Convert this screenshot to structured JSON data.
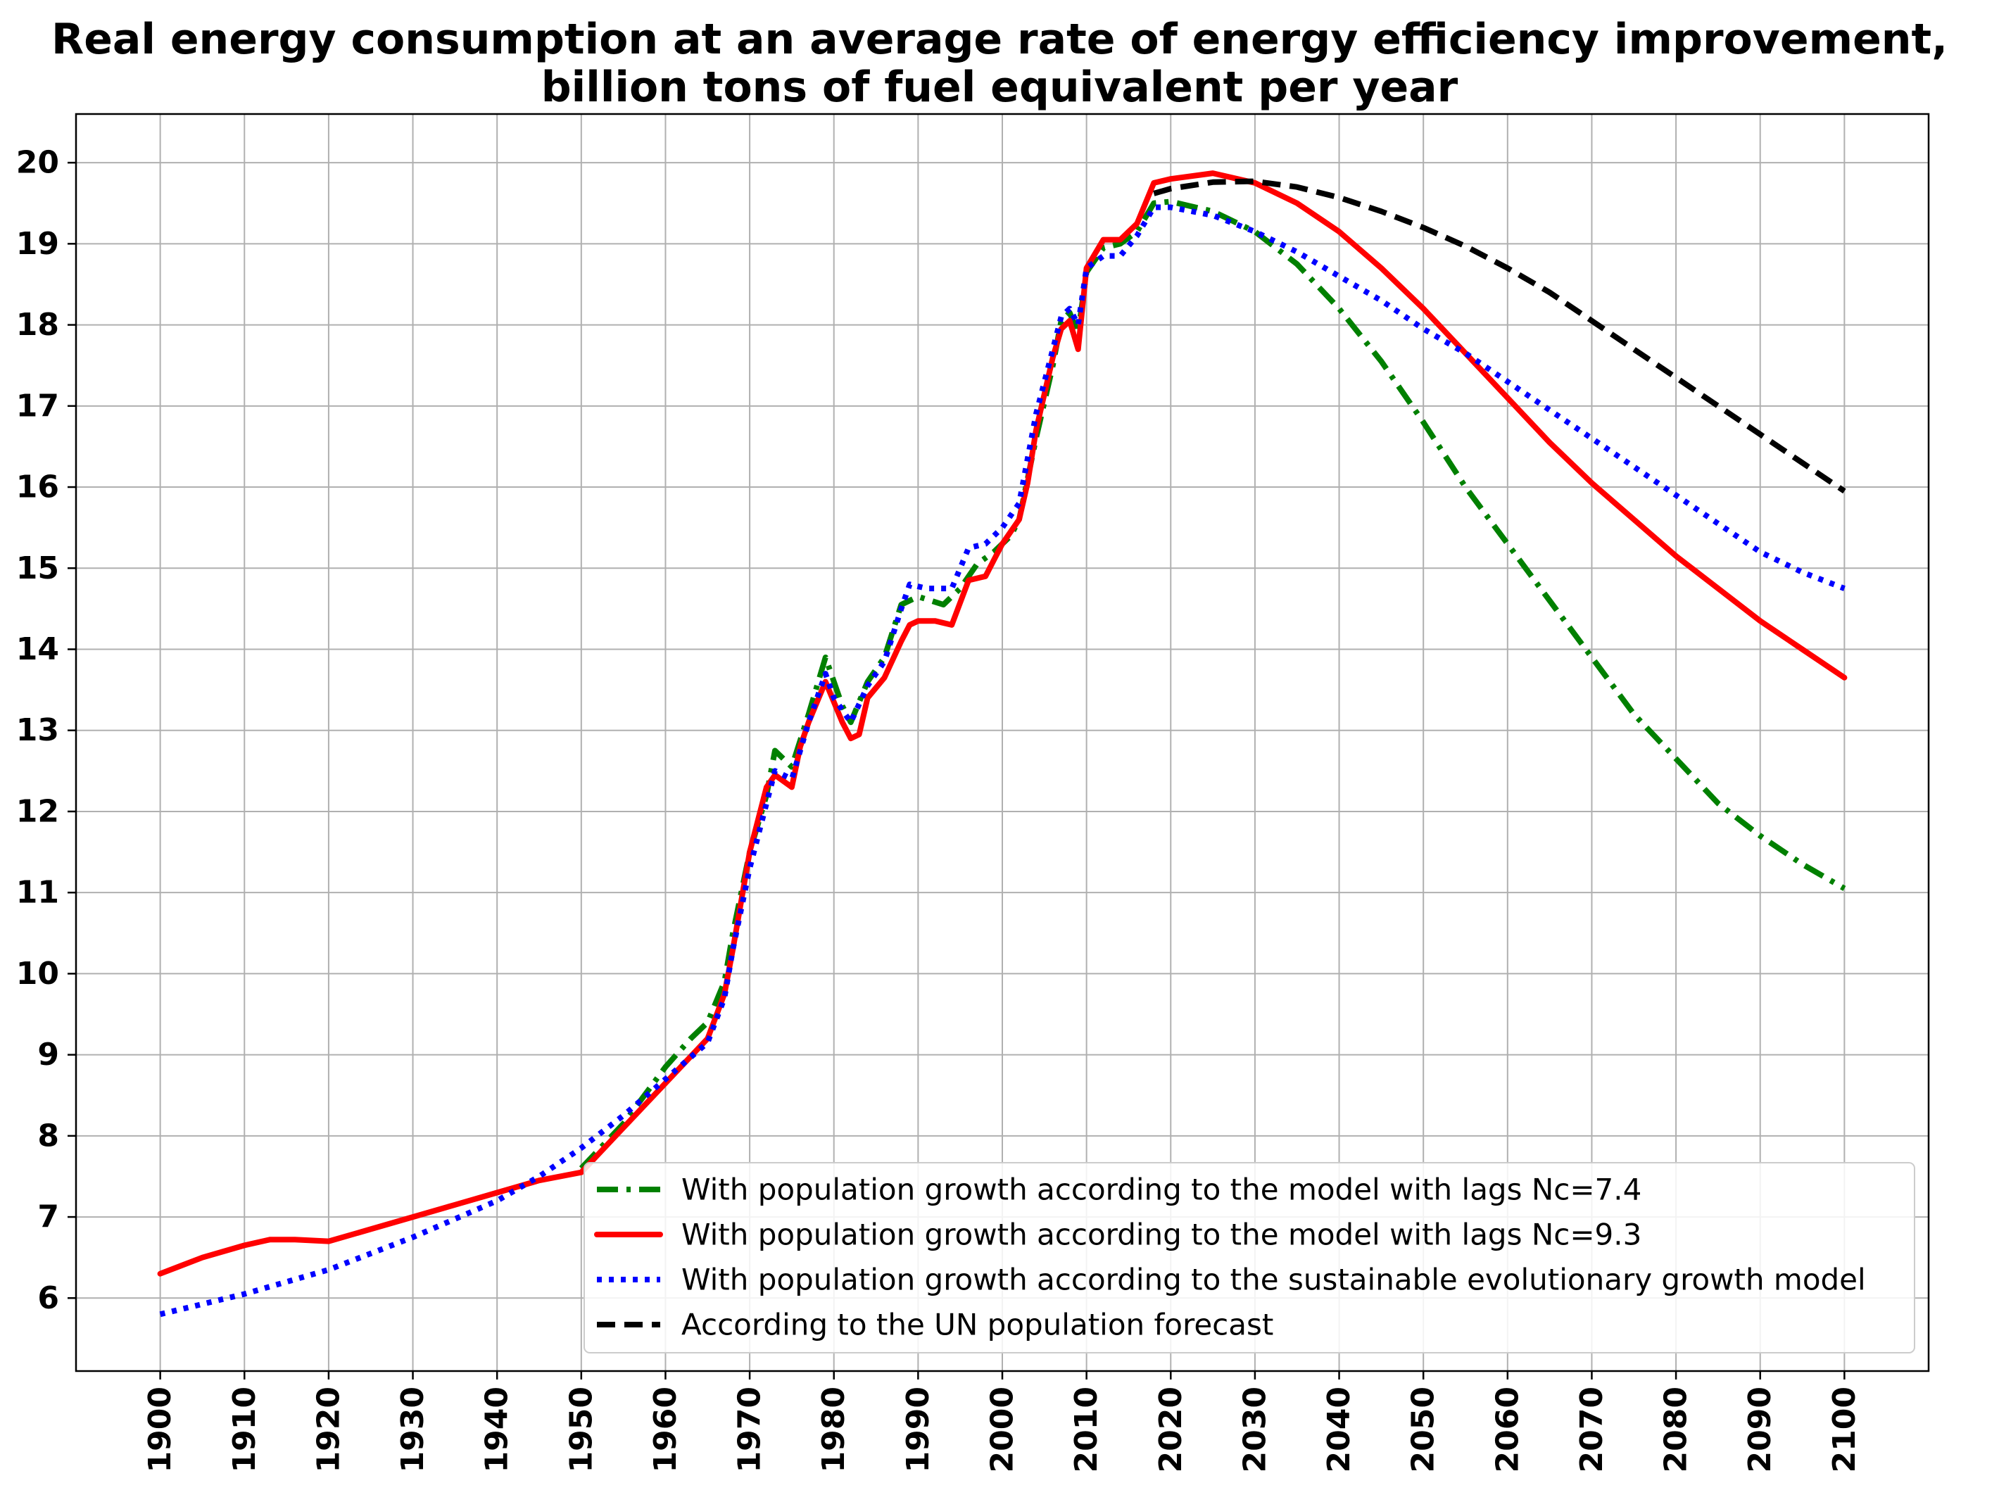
{
  "chart_data": {
    "type": "line",
    "title": "Real energy consumption at an average rate of energy efficiency improvement,",
    "subtitle": "billion tons of fuel equivalent per year",
    "xlabel": "",
    "ylabel": "",
    "xlim": [
      1890,
      2110
    ],
    "ylim": [
      5.1,
      20.6
    ],
    "x_ticks": [
      1900,
      1910,
      1920,
      1930,
      1940,
      1950,
      1960,
      1970,
      1980,
      1990,
      2000,
      2010,
      2020,
      2030,
      2040,
      2050,
      2060,
      2070,
      2080,
      2090,
      2100
    ],
    "y_ticks": [
      6,
      7,
      8,
      9,
      10,
      11,
      12,
      13,
      14,
      15,
      16,
      17,
      18,
      19,
      20
    ],
    "grid": true,
    "legend_position": "lower-right",
    "series": [
      {
        "name": "With population growth according to the model with lags Nc=7.4",
        "color": "#008000",
        "style": "dashdot",
        "points": [
          [
            1950,
            7.6
          ],
          [
            1955,
            8.15
          ],
          [
            1960,
            8.85
          ],
          [
            1963,
            9.2
          ],
          [
            1965,
            9.4
          ],
          [
            1967,
            9.9
          ],
          [
            1968,
            10.5
          ],
          [
            1970,
            11.5
          ],
          [
            1972,
            12.2
          ],
          [
            1973,
            12.75
          ],
          [
            1975,
            12.55
          ],
          [
            1977,
            13.2
          ],
          [
            1979,
            13.9
          ],
          [
            1981,
            13.3
          ],
          [
            1982,
            13.1
          ],
          [
            1984,
            13.6
          ],
          [
            1986,
            13.9
          ],
          [
            1988,
            14.55
          ],
          [
            1990,
            14.65
          ],
          [
            1993,
            14.55
          ],
          [
            1995,
            14.75
          ],
          [
            1997,
            15.05
          ],
          [
            1999,
            15.2
          ],
          [
            2001,
            15.4
          ],
          [
            2002,
            15.6
          ],
          [
            2004,
            16.6
          ],
          [
            2006,
            17.5
          ],
          [
            2007,
            18.05
          ],
          [
            2008,
            18.15
          ],
          [
            2009,
            17.9
          ],
          [
            2010,
            18.65
          ],
          [
            2012,
            18.95
          ],
          [
            2014,
            19.0
          ],
          [
            2016,
            19.15
          ],
          [
            2018,
            19.5
          ],
          [
            2020,
            19.52
          ],
          [
            2025,
            19.4
          ],
          [
            2030,
            19.15
          ],
          [
            2035,
            18.75
          ],
          [
            2040,
            18.2
          ],
          [
            2045,
            17.55
          ],
          [
            2050,
            16.8
          ],
          [
            2055,
            16.0
          ],
          [
            2060,
            15.3
          ],
          [
            2065,
            14.6
          ],
          [
            2070,
            13.9
          ],
          [
            2075,
            13.2
          ],
          [
            2080,
            12.65
          ],
          [
            2085,
            12.1
          ],
          [
            2090,
            11.7
          ],
          [
            2095,
            11.35
          ],
          [
            2100,
            11.05
          ]
        ]
      },
      {
        "name": "With population growth according to the model with lags  Nc=9.3",
        "color": "#ff0000",
        "style": "solid",
        "points": [
          [
            1900,
            6.3
          ],
          [
            1905,
            6.5
          ],
          [
            1910,
            6.65
          ],
          [
            1913,
            6.72
          ],
          [
            1916,
            6.72
          ],
          [
            1920,
            6.7
          ],
          [
            1925,
            6.85
          ],
          [
            1930,
            7.0
          ],
          [
            1935,
            7.15
          ],
          [
            1940,
            7.3
          ],
          [
            1945,
            7.45
          ],
          [
            1950,
            7.55
          ],
          [
            1955,
            8.1
          ],
          [
            1960,
            8.65
          ],
          [
            1965,
            9.2
          ],
          [
            1967,
            9.75
          ],
          [
            1968,
            10.3
          ],
          [
            1970,
            11.5
          ],
          [
            1972,
            12.3
          ],
          [
            1973,
            12.45
          ],
          [
            1975,
            12.3
          ],
          [
            1976,
            12.8
          ],
          [
            1977,
            13.1
          ],
          [
            1979,
            13.6
          ],
          [
            1980,
            13.35
          ],
          [
            1981,
            13.1
          ],
          [
            1982,
            12.9
          ],
          [
            1983,
            12.95
          ],
          [
            1984,
            13.4
          ],
          [
            1986,
            13.65
          ],
          [
            1988,
            14.1
          ],
          [
            1989,
            14.3
          ],
          [
            1990,
            14.35
          ],
          [
            1992,
            14.35
          ],
          [
            1994,
            14.3
          ],
          [
            1996,
            14.85
          ],
          [
            1998,
            14.9
          ],
          [
            1999,
            15.1
          ],
          [
            2000,
            15.3
          ],
          [
            2002,
            15.6
          ],
          [
            2003,
            16.05
          ],
          [
            2004,
            16.7
          ],
          [
            2006,
            17.6
          ],
          [
            2007,
            17.95
          ],
          [
            2008,
            18.05
          ],
          [
            2009,
            17.7
          ],
          [
            2010,
            18.7
          ],
          [
            2012,
            19.05
          ],
          [
            2014,
            19.05
          ],
          [
            2016,
            19.25
          ],
          [
            2018,
            19.75
          ],
          [
            2020,
            19.8
          ],
          [
            2025,
            19.87
          ],
          [
            2030,
            19.75
          ],
          [
            2035,
            19.5
          ],
          [
            2040,
            19.15
          ],
          [
            2045,
            18.7
          ],
          [
            2050,
            18.2
          ],
          [
            2055,
            17.65
          ],
          [
            2060,
            17.1
          ],
          [
            2065,
            16.55
          ],
          [
            2070,
            16.05
          ],
          [
            2075,
            15.6
          ],
          [
            2080,
            15.15
          ],
          [
            2085,
            14.75
          ],
          [
            2090,
            14.35
          ],
          [
            2095,
            14.0
          ],
          [
            2100,
            13.65
          ]
        ]
      },
      {
        "name": "With population growth according to the sustainable evolutionary growth model",
        "color": "#0000ff",
        "style": "dotted",
        "points": [
          [
            1900,
            5.8
          ],
          [
            1910,
            6.05
          ],
          [
            1920,
            6.35
          ],
          [
            1930,
            6.75
          ],
          [
            1940,
            7.2
          ],
          [
            1945,
            7.5
          ],
          [
            1950,
            7.85
          ],
          [
            1955,
            8.25
          ],
          [
            1960,
            8.7
          ],
          [
            1965,
            9.15
          ],
          [
            1967,
            9.7
          ],
          [
            1968,
            10.3
          ],
          [
            1970,
            11.3
          ],
          [
            1972,
            12.1
          ],
          [
            1973,
            12.5
          ],
          [
            1975,
            12.4
          ],
          [
            1977,
            13.1
          ],
          [
            1979,
            13.7
          ],
          [
            1980,
            13.4
          ],
          [
            1982,
            13.1
          ],
          [
            1984,
            13.55
          ],
          [
            1986,
            13.85
          ],
          [
            1988,
            14.5
          ],
          [
            1989,
            14.8
          ],
          [
            1991,
            14.75
          ],
          [
            1994,
            14.75
          ],
          [
            1996,
            15.25
          ],
          [
            1998,
            15.3
          ],
          [
            2000,
            15.5
          ],
          [
            2002,
            15.8
          ],
          [
            2004,
            16.9
          ],
          [
            2006,
            17.7
          ],
          [
            2007,
            18.1
          ],
          [
            2008,
            18.2
          ],
          [
            2009,
            18.0
          ],
          [
            2010,
            18.7
          ],
          [
            2012,
            18.85
          ],
          [
            2014,
            18.85
          ],
          [
            2016,
            19.1
          ],
          [
            2018,
            19.45
          ],
          [
            2020,
            19.45
          ],
          [
            2025,
            19.35
          ],
          [
            2030,
            19.15
          ],
          [
            2035,
            18.9
          ],
          [
            2040,
            18.6
          ],
          [
            2045,
            18.3
          ],
          [
            2050,
            17.95
          ],
          [
            2055,
            17.65
          ],
          [
            2060,
            17.3
          ],
          [
            2065,
            16.95
          ],
          [
            2070,
            16.6
          ],
          [
            2075,
            16.25
          ],
          [
            2080,
            15.9
          ],
          [
            2085,
            15.55
          ],
          [
            2090,
            15.2
          ],
          [
            2095,
            14.95
          ],
          [
            2100,
            14.75
          ]
        ]
      },
      {
        "name": "According to the UN population forecast",
        "color": "#000000",
        "style": "dashed",
        "points": [
          [
            2018,
            19.62
          ],
          [
            2020,
            19.68
          ],
          [
            2025,
            19.76
          ],
          [
            2030,
            19.77
          ],
          [
            2035,
            19.7
          ],
          [
            2040,
            19.57
          ],
          [
            2045,
            19.4
          ],
          [
            2050,
            19.2
          ],
          [
            2055,
            18.97
          ],
          [
            2060,
            18.7
          ],
          [
            2065,
            18.4
          ],
          [
            2070,
            18.05
          ],
          [
            2075,
            17.7
          ],
          [
            2080,
            17.35
          ],
          [
            2085,
            17.0
          ],
          [
            2090,
            16.65
          ],
          [
            2095,
            16.3
          ],
          [
            2100,
            15.95
          ]
        ]
      }
    ]
  }
}
